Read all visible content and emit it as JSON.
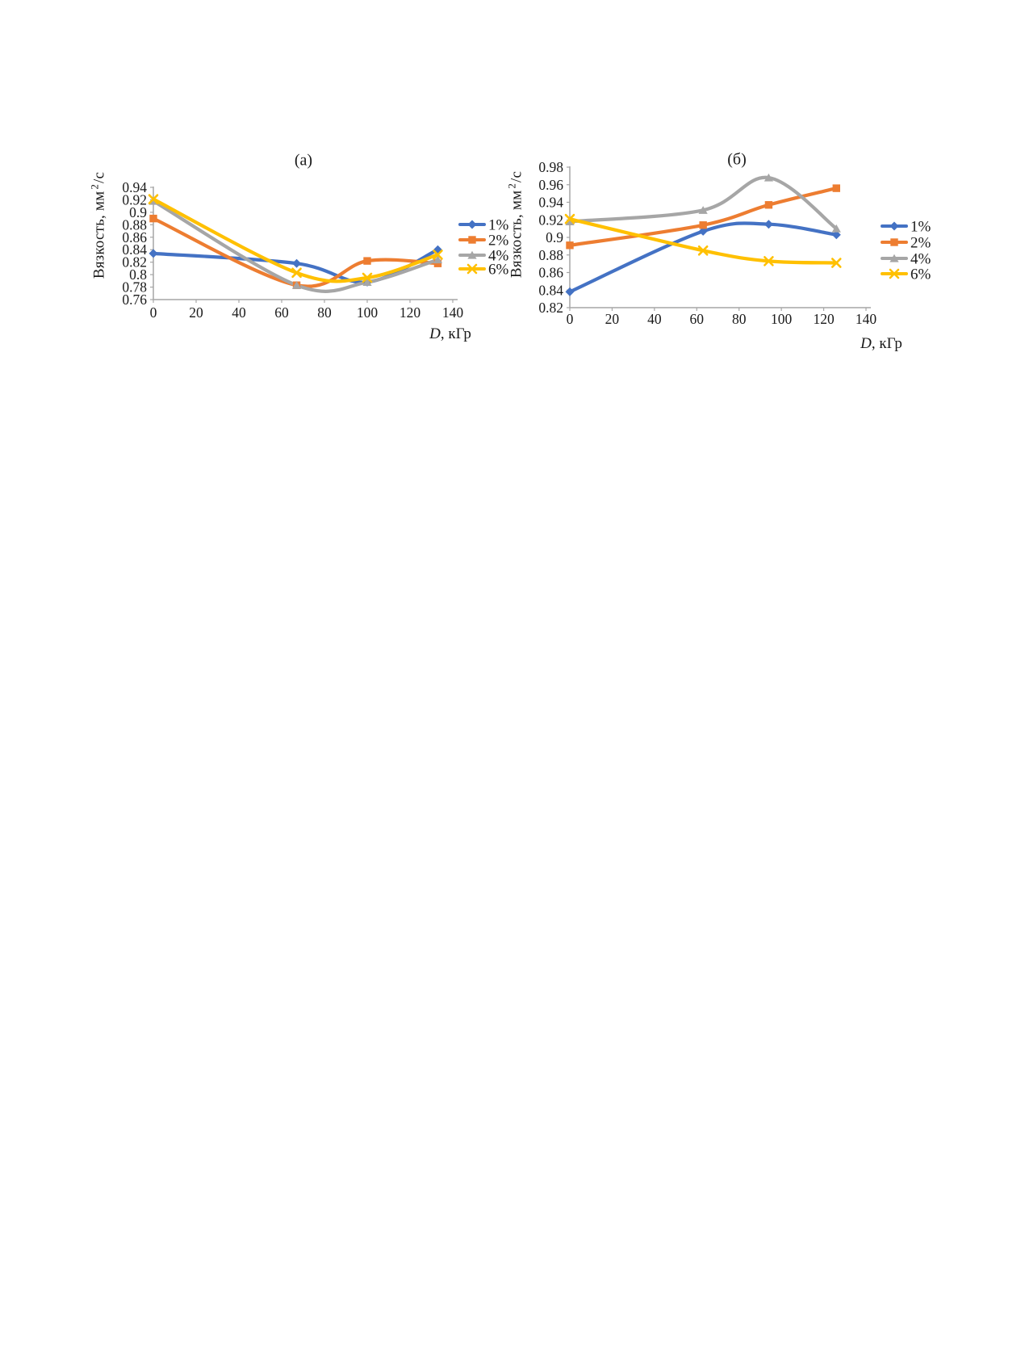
{
  "page": {
    "background": "#ffffff"
  },
  "colors": {
    "axis": "#A6A6A6",
    "text": "#1a1a1a",
    "series_1pct": "#4472C4",
    "series_2pct": "#ED7D31",
    "series_4pct": "#A6A6A6",
    "series_6pct": "#FFC000"
  },
  "chart_data": [
    {
      "panel": "a",
      "type": "line",
      "title": "(a)",
      "xlabel": "D, кГр",
      "xlabel_parts": {
        "italic": "D",
        "rest": ", кГр"
      },
      "ylabel": "Вязкость, мм2/с",
      "ylabel_parts": {
        "base": "Вязкость, мм",
        "sup": "2",
        "rest": "/с"
      },
      "xlim": [
        0,
        140
      ],
      "ylim": [
        0.76,
        0.94
      ],
      "x_ticks": [
        0,
        20,
        40,
        60,
        80,
        100,
        120,
        140
      ],
      "y_ticks": [
        "0.76",
        "0.78",
        "0.8",
        "0.82",
        "0.84",
        "0.86",
        "0.88",
        "0.9",
        "0.92",
        "0.94"
      ],
      "grid": "off",
      "legend_position": "right",
      "x": [
        0,
        67,
        100,
        133
      ],
      "series": [
        {
          "name": "1%",
          "marker": "diamond",
          "color": "#4472C4",
          "values": [
            0.834,
            0.818,
            0.788,
            0.84
          ]
        },
        {
          "name": "2%",
          "marker": "square",
          "color": "#ED7D31",
          "values": [
            0.89,
            0.783,
            0.822,
            0.818
          ]
        },
        {
          "name": "4%",
          "marker": "triangle",
          "color": "#A6A6A6",
          "values": [
            0.918,
            0.783,
            0.788,
            0.824
          ]
        },
        {
          "name": "6%",
          "marker": "x",
          "color": "#FFC000",
          "values": [
            0.921,
            0.803,
            0.795,
            0.832
          ]
        }
      ]
    },
    {
      "panel": "б",
      "type": "line",
      "title": "(б)",
      "xlabel": "D, кГр",
      "xlabel_parts": {
        "italic": "D",
        "rest": ", кГр"
      },
      "ylabel": "Вязкость, мм2/с",
      "ylabel_parts": {
        "base": "Вязкость, мм",
        "sup": "2",
        "rest": "/с"
      },
      "xlim": [
        0,
        140
      ],
      "ylim": [
        0.82,
        0.98
      ],
      "x_ticks": [
        0,
        20,
        40,
        60,
        80,
        100,
        120,
        140
      ],
      "y_ticks": [
        "0.82",
        "0.84",
        "0.86",
        "0.88",
        "0.9",
        "0.92",
        "0.94",
        "0.96",
        "0.98"
      ],
      "grid": "off",
      "legend_position": "right",
      "x": [
        0,
        63,
        94,
        126
      ],
      "series": [
        {
          "name": "1%",
          "marker": "diamond",
          "color": "#4472C4",
          "values": [
            0.838,
            0.907,
            0.915,
            0.903
          ]
        },
        {
          "name": "2%",
          "marker": "square",
          "color": "#ED7D31",
          "values": [
            0.891,
            0.914,
            0.937,
            0.956
          ]
        },
        {
          "name": "4%",
          "marker": "triangle",
          "color": "#A6A6A6",
          "values": [
            0.918,
            0.931,
            0.968,
            0.91
          ]
        },
        {
          "name": "6%",
          "marker": "x",
          "color": "#FFC000",
          "values": [
            0.921,
            0.885,
            0.873,
            0.871
          ]
        }
      ]
    }
  ]
}
